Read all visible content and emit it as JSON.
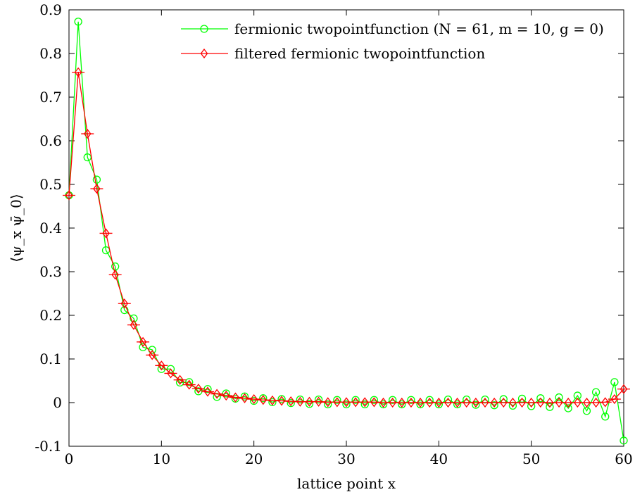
{
  "chart_data": {
    "type": "line",
    "title": "",
    "xlabel": "lattice point x",
    "ylabel": "⟨ψ_x ψ̄_0⟩",
    "xlim": [
      0,
      60
    ],
    "ylim": [
      -0.1,
      0.9
    ],
    "xticks": [
      0,
      10,
      20,
      30,
      40,
      50,
      60
    ],
    "yticks": [
      -0.1,
      0,
      0.1,
      0.2,
      0.3,
      0.4,
      0.5,
      0.6,
      0.7,
      0.8,
      0.9
    ],
    "xtick_labels": [
      "0",
      "10",
      "20",
      "30",
      "40",
      "50",
      "60"
    ],
    "ytick_labels": [
      "-0.1",
      "0",
      "0.1",
      "0.2",
      "0.3",
      "0.4",
      "0.5",
      "0.6",
      "0.7",
      "0.8",
      "0.9"
    ],
    "grid": false,
    "legend_position": "top-right",
    "x": [
      0,
      1,
      2,
      3,
      4,
      5,
      6,
      7,
      8,
      9,
      10,
      11,
      12,
      13,
      14,
      15,
      16,
      17,
      18,
      19,
      20,
      21,
      22,
      23,
      24,
      25,
      26,
      27,
      28,
      29,
      30,
      31,
      32,
      33,
      34,
      35,
      36,
      37,
      38,
      39,
      40,
      41,
      42,
      43,
      44,
      45,
      46,
      47,
      48,
      49,
      50,
      51,
      52,
      53,
      54,
      55,
      56,
      57,
      58,
      59,
      60
    ],
    "series": [
      {
        "name": "fermionic twopointfunction (N = 61, m = 10, g = 0)",
        "color": "#00ff00",
        "marker": "circle",
        "values": [
          0.475,
          0.873,
          0.562,
          0.511,
          0.349,
          0.312,
          0.212,
          0.193,
          0.127,
          0.121,
          0.077,
          0.077,
          0.046,
          0.047,
          0.026,
          0.031,
          0.013,
          0.021,
          0.009,
          0.014,
          0.004,
          0.01,
          0.001,
          0.008,
          -0.001,
          0.007,
          -0.003,
          0.007,
          -0.004,
          0.006,
          -0.004,
          0.006,
          -0.004,
          0.006,
          -0.004,
          0.006,
          -0.004,
          0.006,
          -0.004,
          0.006,
          -0.004,
          0.007,
          -0.004,
          0.007,
          -0.005,
          0.007,
          -0.006,
          0.008,
          -0.007,
          0.009,
          -0.008,
          0.01,
          -0.01,
          0.012,
          -0.013,
          0.016,
          -0.019,
          0.024,
          -0.032,
          0.047,
          -0.087
        ]
      },
      {
        "name": "filtered fermionic twopointfunction",
        "color": "#ff0000",
        "marker": "diamond",
        "values": [
          0.475,
          0.757,
          0.616,
          0.49,
          0.388,
          0.293,
          0.227,
          0.178,
          0.139,
          0.109,
          0.085,
          0.067,
          0.052,
          0.041,
          0.032,
          0.025,
          0.02,
          0.016,
          0.012,
          0.01,
          0.008,
          0.006,
          0.005,
          0.004,
          0.003,
          0.002,
          0.002,
          0.002,
          0.001,
          0.001,
          0.001,
          0.001,
          0.001,
          0.001,
          0.0,
          0.0,
          0.0,
          0.0,
          0.0,
          0.0,
          0.0,
          0.0,
          0.0,
          0.0,
          0.0,
          0.0,
          0.0,
          0.0,
          0.0,
          0.0,
          0.0,
          0.0,
          0.0,
          0.0,
          0.0,
          0.0,
          0.0,
          0.0,
          0.001,
          0.008,
          0.031
        ]
      }
    ]
  }
}
